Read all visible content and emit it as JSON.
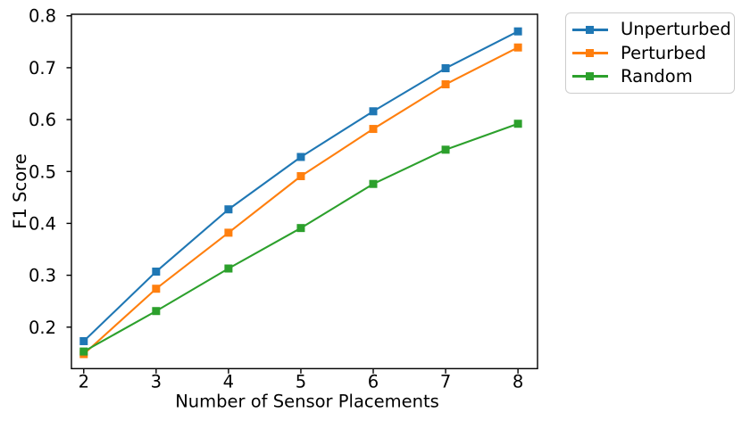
{
  "chart_data": {
    "type": "line",
    "xlabel": "Number of Sensor Placements",
    "ylabel": "F1 Score",
    "x": [
      2,
      3,
      4,
      5,
      6,
      7,
      8
    ],
    "x_ticks": [
      "2",
      "3",
      "4",
      "5",
      "6",
      "7",
      "8"
    ],
    "y_ticks": [
      "0.2",
      "0.3",
      "0.4",
      "0.5",
      "0.6",
      "0.7",
      "0.8"
    ],
    "y_tick_values": [
      0.2,
      0.3,
      0.4,
      0.5,
      0.6,
      0.7,
      0.8
    ],
    "xlim": [
      1.83,
      8.27
    ],
    "ylim": [
      0.12,
      0.803
    ],
    "grid": false,
    "legend_position": "outside-upper-right",
    "marker": "square",
    "axis_color": "#000000",
    "legend_border_color": "#cccccc",
    "series": [
      {
        "name": "Unperturbed",
        "color": "#1f77b4",
        "values": [
          0.173,
          0.307,
          0.427,
          0.528,
          0.616,
          0.699,
          0.77
        ]
      },
      {
        "name": "Perturbed",
        "color": "#ff7f0e",
        "values": [
          0.148,
          0.274,
          0.382,
          0.491,
          0.582,
          0.668,
          0.739
        ]
      },
      {
        "name": "Random",
        "color": "#2ca02c",
        "values": [
          0.153,
          0.231,
          0.313,
          0.391,
          0.476,
          0.542,
          0.592
        ]
      }
    ]
  }
}
